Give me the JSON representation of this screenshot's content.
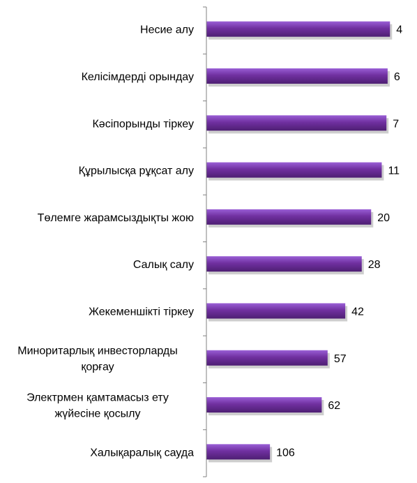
{
  "chart_data": {
    "type": "bar",
    "orientation": "horizontal",
    "categories": [
      [
        "Несие алу"
      ],
      [
        "Келісімдерді орындау"
      ],
      [
        "Кәсіпорынды тіркеу"
      ],
      [
        "Құрылысқа рұқсат алу"
      ],
      [
        "Төлемге жарамсыздықты жою"
      ],
      [
        "Салық салу"
      ],
      [
        "Жекеменшікті тіркеу"
      ],
      [
        "Миноритарлық инвесторларды",
        "қорғау"
      ],
      [
        "Электрмен қамтамасыз ету",
        "жүйесіне қосылу"
      ],
      [
        "Халықаралық сауда"
      ]
    ],
    "values": [
      4,
      6,
      7,
      11,
      20,
      28,
      42,
      57,
      62,
      106
    ],
    "value_labels": [
      "4",
      "6",
      "7",
      "11",
      "20",
      "28",
      "42",
      "57",
      "62",
      "106"
    ],
    "axis_reversed": true,
    "xlim": [
      0,
      160
    ],
    "grid": false,
    "legend": "none",
    "colors": {
      "bar_fill_light": "#9a5fd6",
      "bar_fill": "#7030a0",
      "bar_fill_dark": "#4e1f73",
      "bar_shadow": "#b9b9b9",
      "axis": "#808080"
    }
  }
}
